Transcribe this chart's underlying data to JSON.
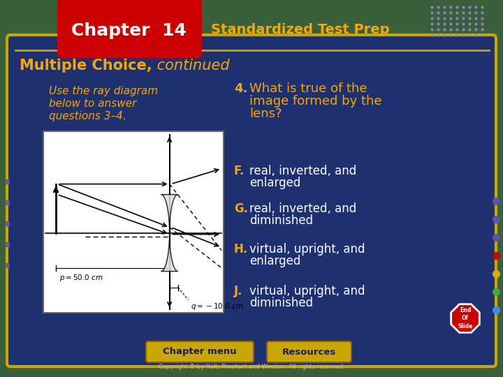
{
  "bg_outer_color": "#3a5f3a",
  "bg_main_color": "#1e3070",
  "bg_main_border": "#c8a800",
  "chapter_box_color": "#cc0000",
  "chapter_text": "Chapter  14",
  "header_title": "Standardized Test Prep",
  "header_title_color": "#f5a800",
  "section_title_bold": "Multiple Choice,",
  "section_title_italic": " continued",
  "section_title_color": "#f5a800",
  "left_instruction_color": "#f5a800",
  "left_instruction_line1": "Use the ray diagram",
  "left_instruction_line2": "below to answer",
  "left_instruction_line3": "questions 3–4.",
  "question_number": "4.",
  "question_line1": "What is true of the",
  "question_line2": "image formed by the",
  "question_line3": "lens?",
  "question_color": "#f5a800",
  "options": [
    {
      "letter": "F.",
      "text": "real, inverted, and\nenlarged"
    },
    {
      "letter": "G.",
      "text": "real, inverted, and\ndiminished"
    },
    {
      "letter": "H.",
      "text": "virtual, upright, and\nenlarged"
    },
    {
      "letter": "J.",
      "text": "virtual, upright, and\ndiminished"
    }
  ],
  "option_letter_color": "#f5a800",
  "option_text_color": "#ffffff",
  "bottom_btn1": "Chapter menu",
  "bottom_btn2": "Resources",
  "bottom_btn_color": "#c8a800",
  "copyright_text": "Copyright © by Holt, Rinehart and Winston. All rights reserved.",
  "end_slide_color": "#cc0000",
  "dot_grid_color": "#8888cc",
  "right_dots": [
    "#5555aa",
    "#5555aa",
    "#5555aa",
    "#cc0000",
    "#ddaa00",
    "#44aa44",
    "#4488ff"
  ],
  "left_dots_color": "#5555aa"
}
